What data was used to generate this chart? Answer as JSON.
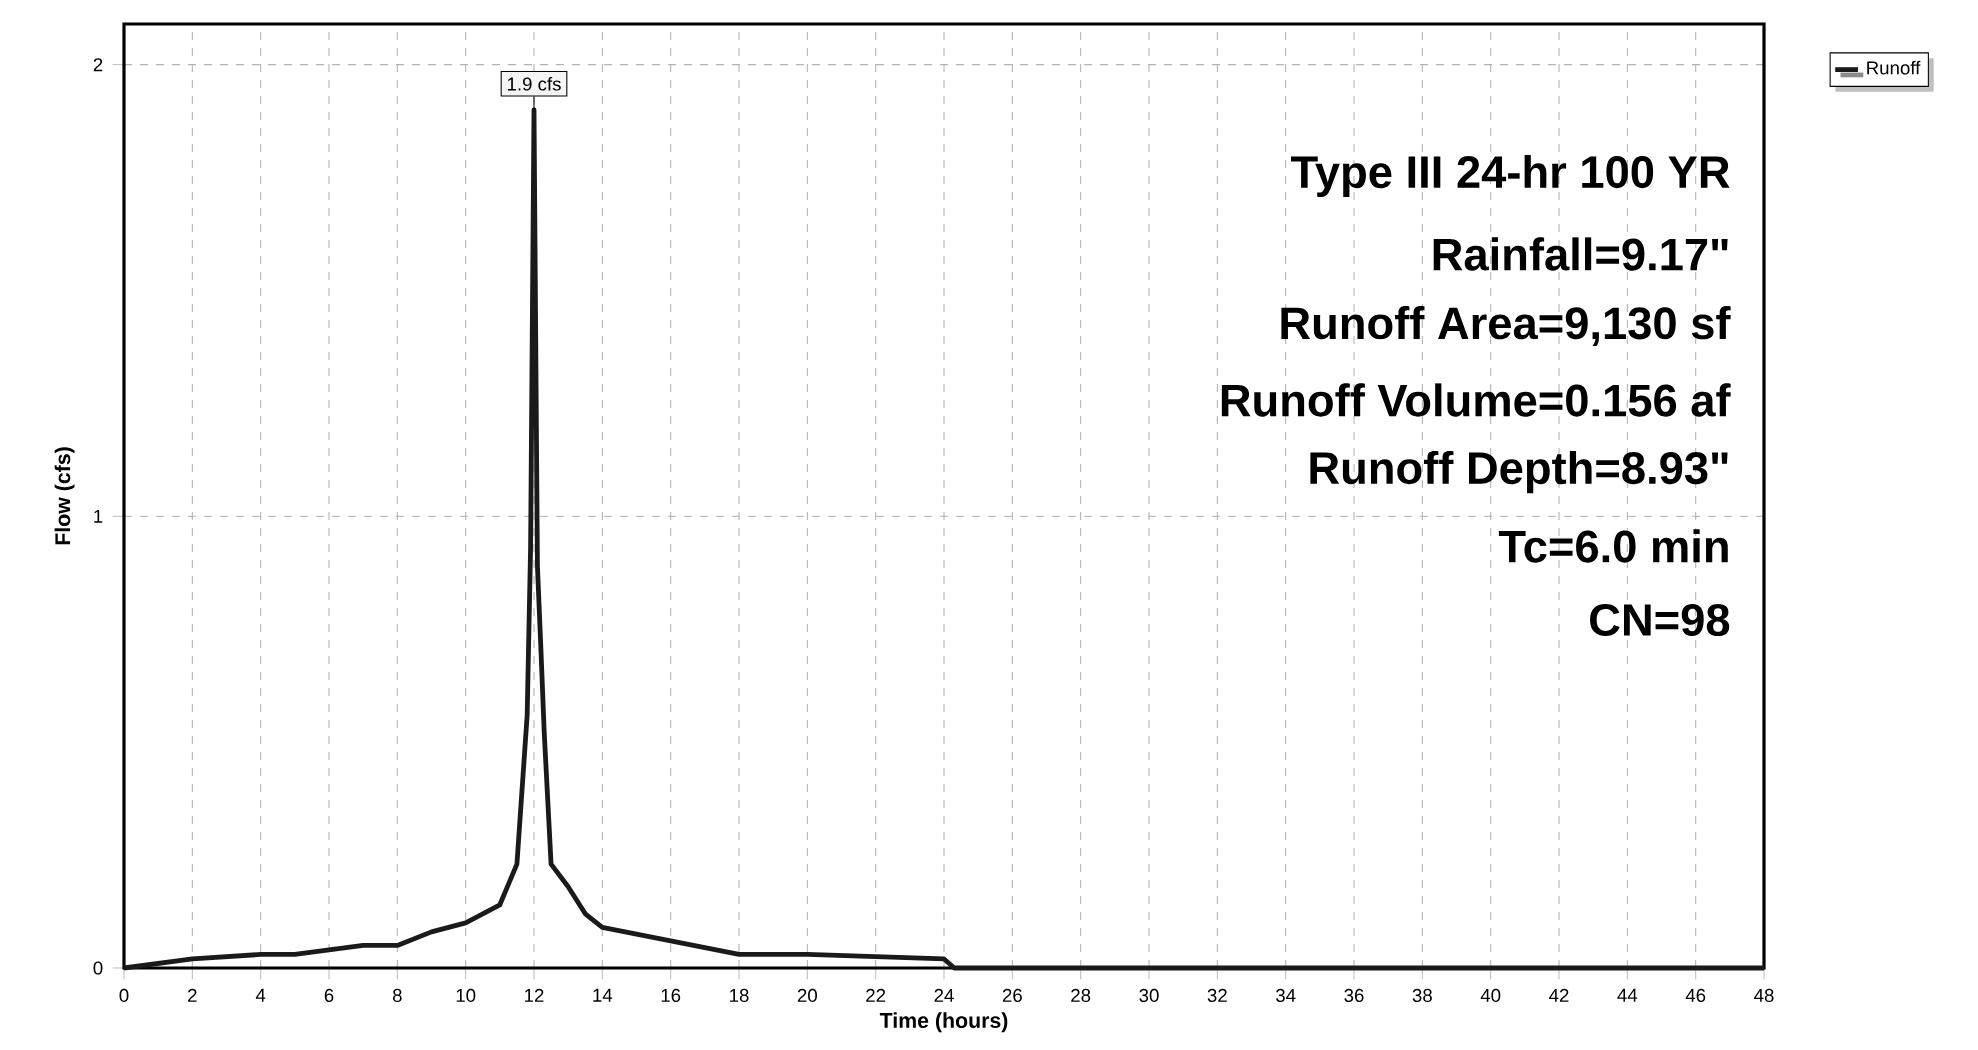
{
  "chart_data": {
    "type": "line",
    "xlabel": "Time (hours)",
    "ylabel": "Flow (cfs)",
    "xlim": [
      0,
      48
    ],
    "ylim": [
      0,
      2.09
    ],
    "xticks": [
      0,
      2,
      4,
      6,
      8,
      10,
      12,
      14,
      16,
      18,
      20,
      22,
      24,
      26,
      28,
      30,
      32,
      34,
      36,
      38,
      40,
      42,
      44,
      46,
      48
    ],
    "yticks": [
      0,
      1,
      2
    ],
    "grid": true,
    "legend": "top right",
    "marker": "none",
    "line_style": "solid",
    "series": [
      {
        "name": "Runoff",
        "color": "#1a1a1a",
        "x": [
          0,
          1,
          2,
          3,
          4,
          5,
          6,
          7,
          8,
          9,
          10,
          11,
          11.5,
          11.7,
          11.8,
          11.9,
          12,
          12.1,
          12.2,
          12.3,
          12.5,
          13,
          13.5,
          14,
          16,
          18,
          20,
          22,
          24,
          24.3,
          30,
          40,
          48
        ],
        "values": [
          0,
          0.01,
          0.02,
          0.025,
          0.03,
          0.03,
          0.04,
          0.05,
          0.05,
          0.08,
          0.1,
          0.14,
          0.23,
          0.45,
          0.56,
          0.93,
          1.9,
          0.89,
          0.71,
          0.52,
          0.23,
          0.18,
          0.12,
          0.09,
          0.06,
          0.03,
          0.03,
          0.025,
          0.02,
          0,
          0,
          0,
          0
        ]
      }
    ],
    "annotations": [
      {
        "text": "1.9 cfs",
        "x": 12,
        "y": 1.9
      },
      "Type III 24-hr 100 YR",
      "Rainfall=9.17\"",
      "Runoff Area=9,130 sf",
      "Runoff Volume=0.156 af",
      "Runoff Depth=8.93\"",
      "Tc=6.0 min",
      "CN=98"
    ]
  }
}
